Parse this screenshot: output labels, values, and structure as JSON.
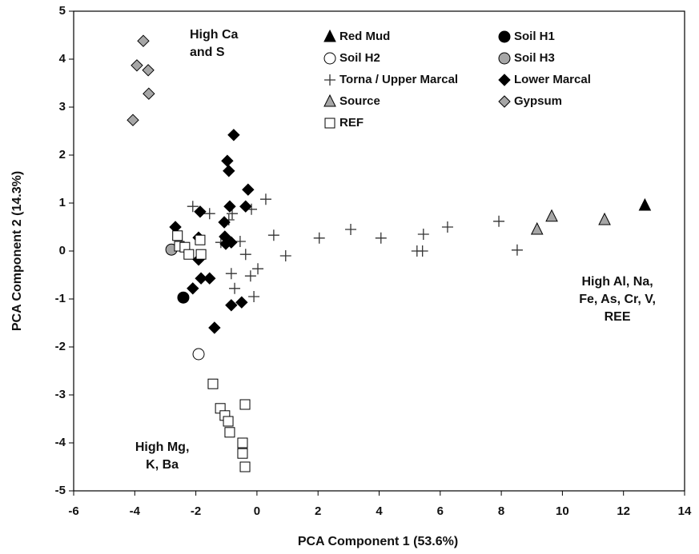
{
  "chart_data": {
    "type": "scatter",
    "x_label": "PCA Component 1 (53.6%)",
    "y_label": "PCA Component 2 (14.3%)",
    "xlim": [
      -6,
      14
    ],
    "xticks": [
      -6,
      -4,
      -2,
      0,
      2,
      4,
      6,
      8,
      10,
      12,
      14
    ],
    "ylim": [
      -5,
      5
    ],
    "yticks": [
      -5,
      -4,
      -3,
      -2,
      -1,
      0,
      1,
      2,
      3,
      4,
      5
    ],
    "annotations": [
      {
        "lines": [
          "High Ca",
          "and S"
        ],
        "x": -2.2,
        "y": 4.5,
        "align": "start"
      },
      {
        "lines": [
          "High Al, Na,",
          "Fe, As, Cr, V,",
          "REE"
        ],
        "x": 11.8,
        "y": -0.65,
        "align": "middle"
      },
      {
        "lines": [
          "High Mg,",
          "K, Ba"
        ],
        "x": -3.1,
        "y": -4.1,
        "align": "middle"
      }
    ],
    "series": [
      {
        "name": "Red Mud",
        "marker": "triangle",
        "color": "#000000",
        "x": [
          12.7
        ],
        "y": [
          0.95
        ]
      },
      {
        "name": "Soil H1",
        "marker": "circle",
        "color": "#000000",
        "x": [
          -2.41
        ],
        "y": [
          -0.97
        ]
      },
      {
        "name": "Soil H2",
        "marker": "circle",
        "color": "#ffffff",
        "x": [
          -1.91
        ],
        "y": [
          -2.15
        ]
      },
      {
        "name": "Soil H3",
        "marker": "circle",
        "color": "#a6a6a6",
        "x": [
          -2.8
        ],
        "y": [
          0.03
        ]
      },
      {
        "name": "Torna / Upper Marcal",
        "marker": "plus",
        "color": "#333333",
        "x": [
          -2.1,
          -1.55,
          -0.81,
          -0.18,
          0.29,
          -0.92,
          -0.55,
          -0.37,
          0.55,
          0.94,
          2.04,
          3.07,
          4.06,
          5.24,
          5.42,
          5.45,
          6.24,
          7.92,
          8.52,
          -0.84,
          -0.73,
          -0.1,
          0.03,
          -0.21,
          -1.18
        ],
        "y": [
          0.93,
          0.78,
          0.78,
          0.87,
          1.08,
          0.65,
          0.2,
          -0.07,
          0.33,
          -0.1,
          0.27,
          0.45,
          0.27,
          0,
          0,
          0.35,
          0.5,
          0.62,
          0.02,
          -0.47,
          -0.78,
          -0.95,
          -0.37,
          -0.52,
          0.18
        ]
      },
      {
        "name": "Lower Marcal",
        "marker": "diamond",
        "color": "#000000",
        "x": [
          -0.76,
          -0.97,
          -0.92,
          -0.29,
          -0.89,
          -0.37,
          -2.67,
          -1.86,
          -1.91,
          -1.07,
          -1.05,
          -1.02,
          -0.84,
          -1.91,
          -2.1,
          -1.83,
          -1.55,
          -0.84,
          -0.5,
          -1.39
        ],
        "y": [
          2.42,
          1.88,
          1.67,
          1.28,
          0.93,
          0.93,
          0.5,
          0.82,
          0.28,
          0.6,
          0.3,
          0.15,
          0.18,
          -0.18,
          -0.78,
          -0.57,
          -0.57,
          -1.13,
          -1.07,
          -1.6
        ]
      },
      {
        "name": "Source",
        "marker": "triangle",
        "color": "#a6a6a6",
        "x": [
          9.17,
          9.65,
          11.38
        ],
        "y": [
          0.45,
          0.72,
          0.65
        ]
      },
      {
        "name": "Gypsum",
        "marker": "diamond",
        "color": "#a6a6a6",
        "x": [
          -3.72,
          -3.93,
          -3.56,
          -3.54,
          -4.06
        ],
        "y": [
          4.38,
          3.87,
          3.77,
          3.28,
          2.73
        ]
      },
      {
        "name": "REF",
        "marker": "square",
        "color": "#ffffff",
        "x": [
          -2.6,
          -2.54,
          -2.36,
          -2.23,
          -1.83,
          -1.86,
          -1.44,
          -1.2,
          -1.05,
          -0.94,
          -0.89,
          -0.39,
          -0.47,
          -0.47,
          -0.39
        ],
        "y": [
          0.32,
          0.1,
          0.08,
          -0.07,
          -0.07,
          0.23,
          -2.77,
          -3.28,
          -3.43,
          -3.55,
          -3.78,
          -3.2,
          -4.0,
          -4.22,
          -4.5
        ]
      }
    ]
  }
}
